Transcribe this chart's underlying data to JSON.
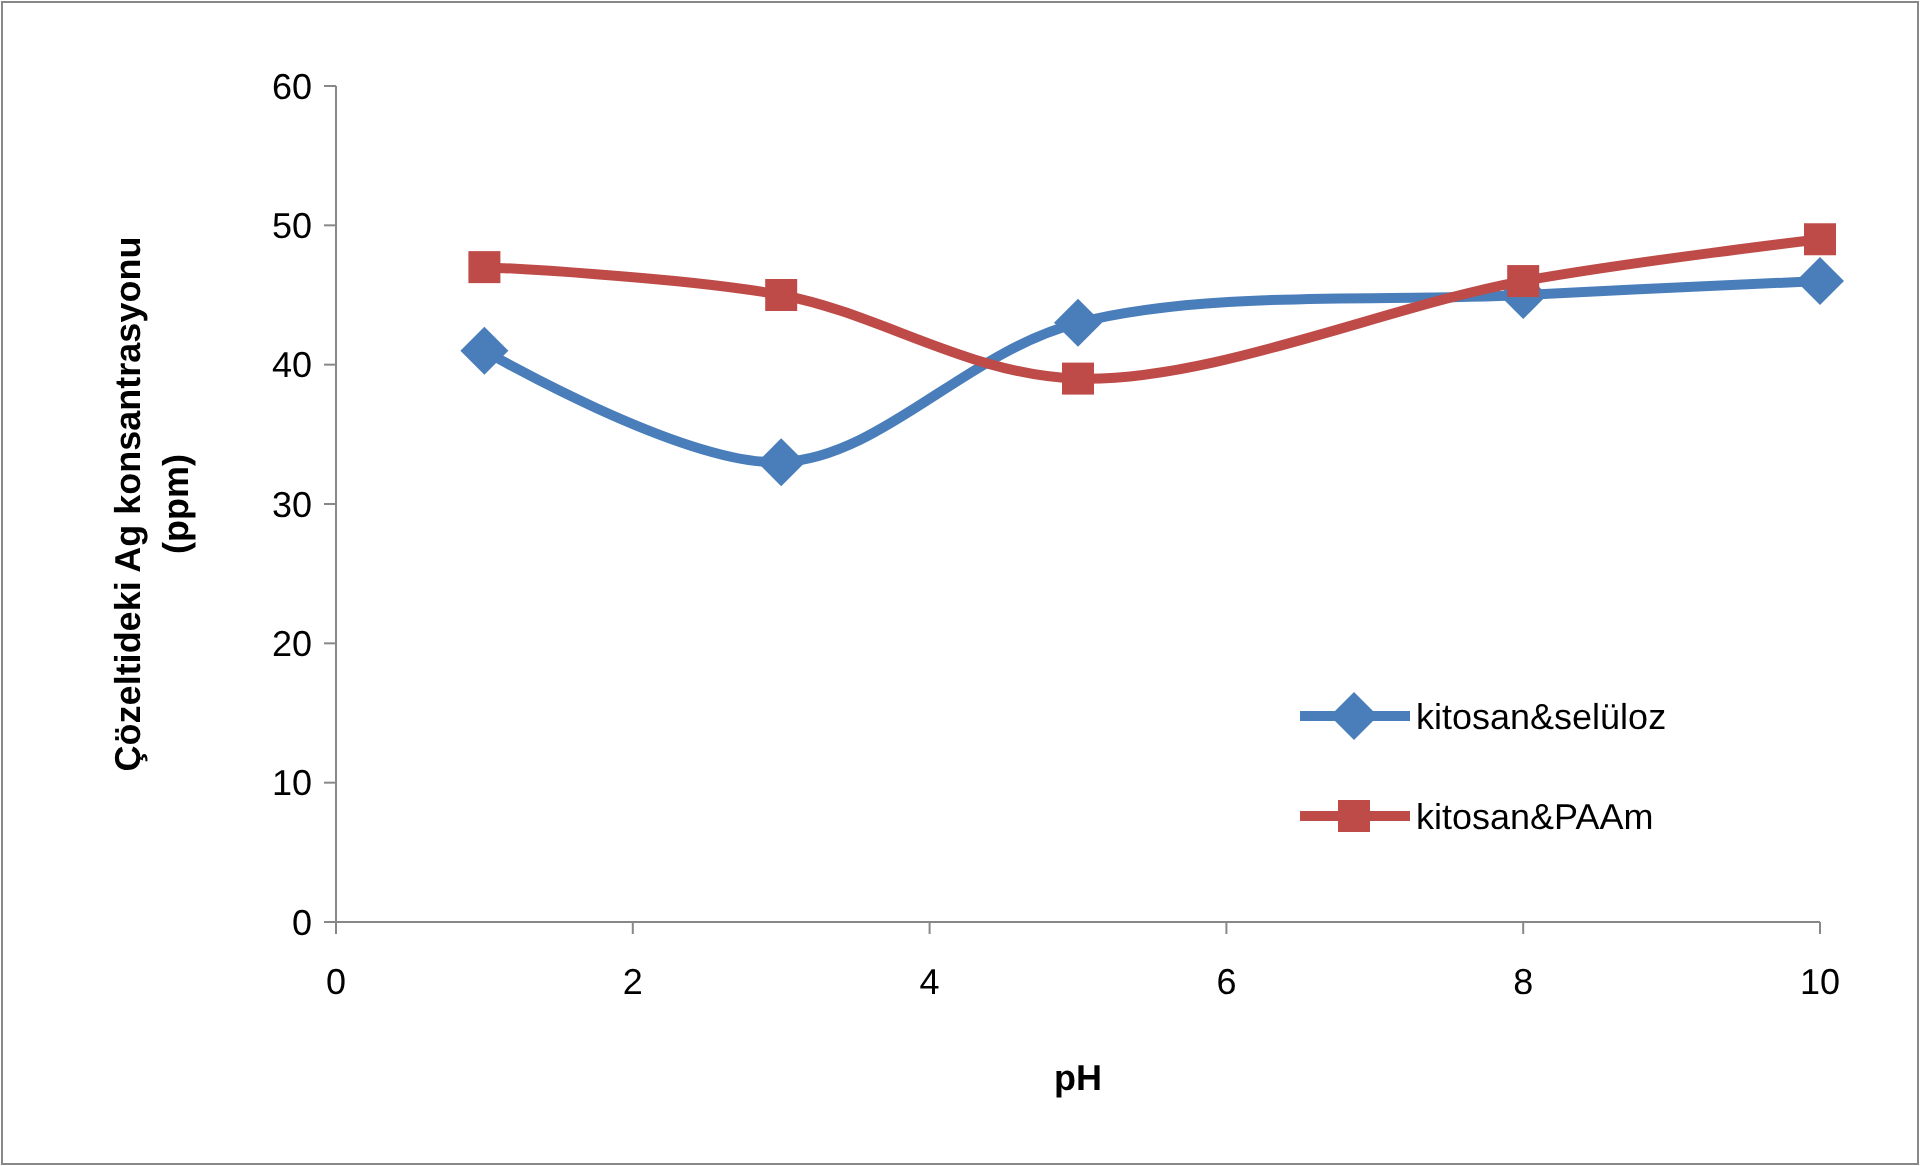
{
  "chart_data": {
    "type": "line",
    "xlabel": "pH",
    "ylabel": "Çözeltideki Ag konsantrasyonu (ppm)",
    "xlim": [
      0,
      10
    ],
    "xticks": [
      0,
      2,
      4,
      6,
      8,
      10
    ],
    "ylim": [
      0,
      60
    ],
    "yticks": [
      0,
      10,
      20,
      30,
      40,
      50,
      60
    ],
    "grid": false,
    "legend": "bottom right",
    "line_style": "solid",
    "series": [
      {
        "name": "kitosan&selüloz",
        "color": "#4a7ebb",
        "marker": "diamond",
        "x": [
          1,
          3,
          5,
          8,
          10
        ],
        "values": [
          41,
          33,
          43,
          45,
          46
        ]
      },
      {
        "name": "kitosan&PAAm",
        "color": "#be4b48",
        "marker": "square",
        "x": [
          1,
          3,
          5,
          8,
          10
        ],
        "values": [
          47,
          45,
          39,
          46,
          49
        ]
      }
    ]
  }
}
